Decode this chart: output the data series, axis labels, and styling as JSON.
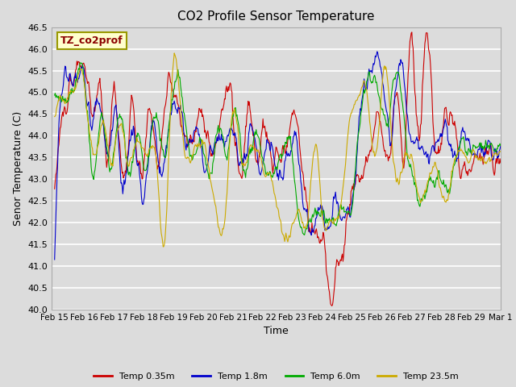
{
  "title": "CO2 Profile Sensor Temperature",
  "xlabel": "Time",
  "ylabel": "Senor Temperature (C)",
  "ylim": [
    40.0,
    46.5
  ],
  "bg_color": "#dcdcdc",
  "fig_color": "#dcdcdc",
  "grid_color": "white",
  "legend_label": "TZ_co2prof",
  "series_labels": [
    "Temp 0.35m",
    "Temp 1.8m",
    "Temp 6.0m",
    "Temp 23.5m"
  ],
  "series_colors": [
    "#cc0000",
    "#0000cc",
    "#00aa00",
    "#ccaa00"
  ],
  "xtick_labels": [
    "Feb 15",
    "Feb 16",
    "Feb 17",
    "Feb 18",
    "Feb 19",
    "Feb 20",
    "Feb 21",
    "Feb 22",
    "Feb 23",
    "Feb 24",
    "Feb 25",
    "Feb 26",
    "Feb 27",
    "Feb 28",
    "Feb 29",
    "Mar 1"
  ],
  "title_fontsize": 11,
  "axis_fontsize": 9,
  "tick_fontsize": 8,
  "legend_fontsize": 8
}
